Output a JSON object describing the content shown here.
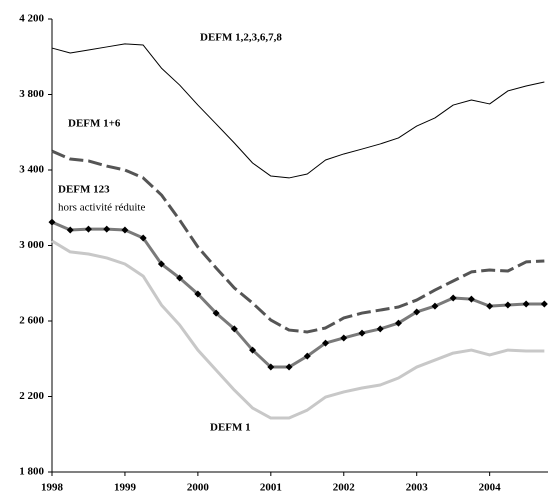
{
  "chart_data": {
    "type": "line",
    "x": [
      1998,
      1998.25,
      1998.5,
      1998.75,
      1999,
      1999.25,
      1999.5,
      1999.75,
      2000,
      2000.25,
      2000.5,
      2000.75,
      2001,
      2001.25,
      2001.5,
      2001.75,
      2002,
      2002.25,
      2002.5,
      2002.75,
      2003,
      2003.25,
      2003.5,
      2003.75,
      2004,
      2004.25,
      2004.5,
      2004.75
    ],
    "series": [
      {
        "name": "DEFM 1,2,3,6,7,8",
        "color": "#000000",
        "style": "thin",
        "values": [
          4046,
          4020,
          4036,
          4052,
          4068,
          4062,
          3940,
          3850,
          3744,
          3644,
          3543,
          3437,
          3368,
          3358,
          3379,
          3453,
          3485,
          3511,
          3538,
          3570,
          3633,
          3676,
          3744,
          3771,
          3750,
          3819,
          3845,
          3866
        ]
      },
      {
        "name": "DEFM 1+6",
        "color": "#555555",
        "style": "dashed",
        "values": [
          3500,
          3458,
          3448,
          3421,
          3400,
          3358,
          3268,
          3135,
          2992,
          2881,
          2775,
          2695,
          2605,
          2552,
          2542,
          2563,
          2616,
          2642,
          2658,
          2674,
          2711,
          2764,
          2812,
          2860,
          2870,
          2865,
          2913,
          2918
        ]
      },
      {
        "name": "DEFM 123",
        "color": "#7a7a7a",
        "style": "markers",
        "values": [
          3124,
          3082,
          3087,
          3087,
          3082,
          3040,
          2902,
          2828,
          2743,
          2642,
          2558,
          2446,
          2356,
          2356,
          2414,
          2483,
          2510,
          2536,
          2558,
          2589,
          2648,
          2679,
          2722,
          2716,
          2679,
          2685,
          2690,
          2690
        ]
      },
      {
        "name": "DEFM 1",
        "color": "#c8c8c8",
        "style": "solid",
        "values": [
          3024,
          2966,
          2955,
          2934,
          2902,
          2838,
          2685,
          2579,
          2446,
          2340,
          2234,
          2139,
          2086,
          2086,
          2128,
          2197,
          2224,
          2245,
          2261,
          2298,
          2356,
          2393,
          2430,
          2446,
          2420,
          2446,
          2441,
          2441
        ]
      }
    ],
    "annotations": [
      "hors activité réduite"
    ],
    "xlim": [
      1998,
      2004.8
    ],
    "xticks": [
      1998,
      1999,
      2000,
      2001,
      2002,
      2003,
      2004
    ],
    "ylim": [
      1800,
      4200
    ],
    "yticks": [
      {
        "value": 1800,
        "label": "1 800"
      },
      {
        "value": 2200,
        "label": "2 200"
      },
      {
        "value": 2600,
        "label": "2 600"
      },
      {
        "value": 3000,
        "label": "3 000"
      },
      {
        "value": 3400,
        "label": "3 400"
      },
      {
        "value": 3800,
        "label": "3 800"
      },
      {
        "value": 4200,
        "label": "4 200"
      }
    ],
    "grid": false
  }
}
